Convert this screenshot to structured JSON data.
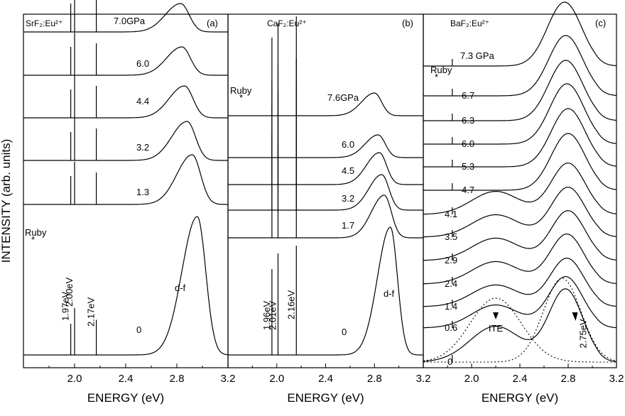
{
  "chart_data": {
    "type": "line",
    "ylabel": "INTENSITY (arb. units)",
    "panels": [
      {
        "id": "a",
        "letter": "(a)",
        "title": "SrF₂:Eu²⁺",
        "xlabel": "ENERGY (eV)",
        "xlim": [
          1.6,
          3.2
        ],
        "xticks": [
          "2.0",
          "2.4",
          "2.8",
          "3.2"
        ],
        "pressure_labels": [
          "7.0GPa",
          "6.0",
          "4.4",
          "3.2",
          "1.3",
          "0"
        ],
        "pressures_gpa": [
          7.0,
          6.0,
          4.4,
          3.2,
          1.3,
          0
        ],
        "df_peak_ev": [
          2.83,
          2.84,
          2.86,
          2.88,
          2.92,
          2.96
        ],
        "line_annotations": [
          "1.97eV",
          "2.00eV",
          "2.17eV"
        ],
        "line_energies_ev": [
          1.97,
          2.0,
          2.17
        ],
        "band_label": "d-f",
        "ruby_label": "Ruby",
        "ruby_star": "*"
      },
      {
        "id": "b",
        "letter": "(b)",
        "title": "CaF₂:Eu²⁺",
        "xlabel": "ENERGY (eV)",
        "xlim": [
          1.6,
          3.2
        ],
        "xticks": [
          "2.0",
          "2.4",
          "2.8",
          "3.2"
        ],
        "pressure_labels": [
          "7.6GPa",
          "6.0",
          "4.5",
          "3.2",
          "1.7",
          "0"
        ],
        "pressures_gpa": [
          7.6,
          6.0,
          4.5,
          3.2,
          1.7,
          0
        ],
        "df_peak_ev": [
          2.8,
          2.83,
          2.84,
          2.86,
          2.88,
          2.93
        ],
        "line_annotations": [
          "1.96eV",
          "2.01eV",
          "2.16eV"
        ],
        "line_energies_ev": [
          1.96,
          2.01,
          2.16
        ],
        "band_label": "d-f",
        "ruby_label": "Ruby",
        "ruby_star": "*"
      },
      {
        "id": "c",
        "letter": "(c)",
        "title": "BaF₂:Eu²⁺",
        "xlabel": "ENERGY (eV)",
        "xlim": [
          1.6,
          3.2
        ],
        "xticks": [
          "2.0",
          "2.4",
          "2.8",
          "3.2"
        ],
        "pressure_labels": [
          "7.3 GPa",
          "6.7",
          "6.3",
          "6.0",
          "5.3",
          "4.7",
          "4.1",
          "3.5",
          "2.9",
          "2.4",
          "1.4",
          "0.6",
          "0"
        ],
        "pressures_gpa": [
          7.3,
          6.7,
          6.3,
          6.0,
          5.3,
          4.7,
          4.1,
          3.5,
          2.9,
          2.4,
          1.4,
          0.6,
          0
        ],
        "df_peak_ev": [
          2.77,
          2.78,
          2.78,
          2.79,
          2.8,
          2.8,
          2.8,
          2.8,
          2.8,
          2.79,
          2.79,
          2.78,
          2.78
        ],
        "ite_peak_ev": 2.2,
        "ite_label": "ITE",
        "band_peak_label": "2.75eV",
        "ruby_label": "Ruby",
        "ruby_star": "*"
      }
    ]
  }
}
